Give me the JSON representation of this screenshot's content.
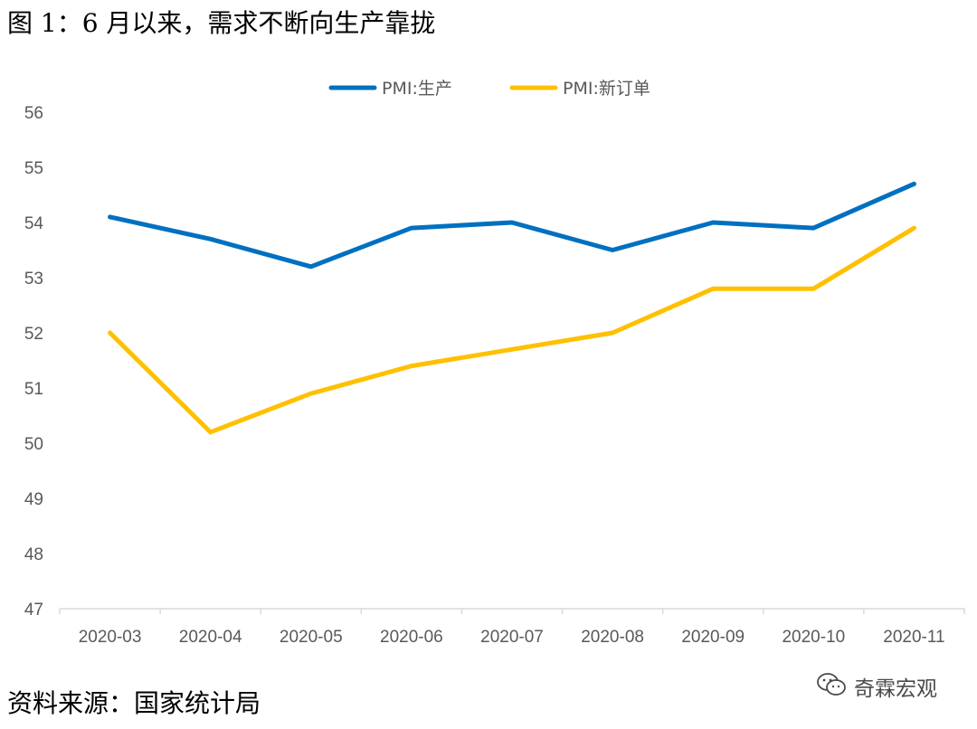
{
  "title": "图 1：6 月以来，需求不断向生产靠拢",
  "source": "资料来源：国家统计局",
  "watermark": {
    "text": "奇霖宏观",
    "icon": "wechat-icon"
  },
  "chart_data": {
    "type": "line",
    "categories": [
      "2020-03",
      "2020-04",
      "2020-05",
      "2020-06",
      "2020-07",
      "2020-08",
      "2020-09",
      "2020-10",
      "2020-11"
    ],
    "series": [
      {
        "name": "PMI:生产",
        "color": "#0070C0",
        "values": [
          54.1,
          53.7,
          53.2,
          53.9,
          54.0,
          53.5,
          54.0,
          53.9,
          54.7
        ]
      },
      {
        "name": "PMI:新订单",
        "color": "#FFC000",
        "values": [
          52.0,
          50.2,
          50.9,
          51.4,
          51.7,
          52.0,
          52.8,
          52.8,
          53.9
        ]
      }
    ],
    "ylim": [
      47,
      56
    ],
    "yticks": [
      47,
      48,
      49,
      50,
      51,
      52,
      53,
      54,
      55,
      56
    ],
    "xlabel": "",
    "ylabel": "",
    "grid": false,
    "legend": "top"
  }
}
